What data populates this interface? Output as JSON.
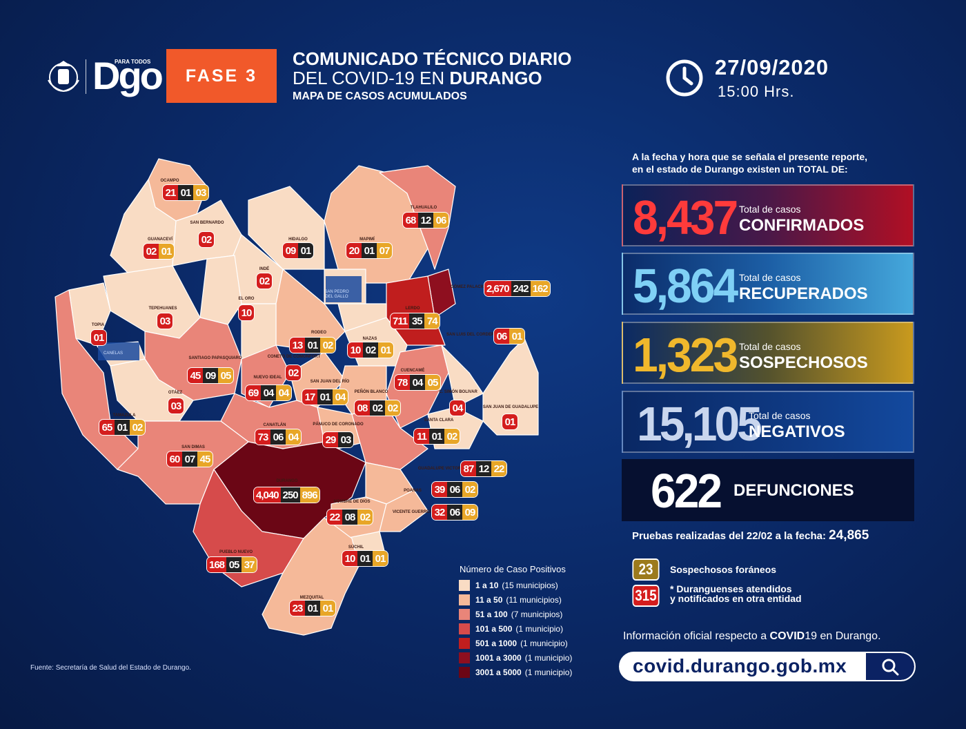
{
  "header": {
    "logo_text": "Dgo",
    "logo_small": "PARA TODOS",
    "fase": "FASE 3",
    "title_line1": "COMUNICADO TÉCNICO DIARIO",
    "title_line2_a": "DEL COVID-19 EN ",
    "title_line2_b": "DURANGO",
    "subtitle": "MAPA DE CASOS ACUMULADOS",
    "date": "27/09/2020",
    "time": "15:00 Hrs."
  },
  "summary": {
    "intro_1": "A la fecha y hora que se señala el presente reporte,",
    "intro_2": "en el estado de Durango existen un TOTAL DE:",
    "confirmados": {
      "value": "8,437",
      "label1": "Total de casos",
      "label2": "CONFIRMADOS"
    },
    "recuperados": {
      "value": "5,864",
      "label1": "Total de casos",
      "label2": "RECUPERADOS"
    },
    "sospechosos": {
      "value": "1,323",
      "label1": "Total de casos",
      "label2": "SOSPECHOSOS"
    },
    "negativos": {
      "value": "15,105",
      "label1": "Total de casos",
      "label2": "NEGATIVOS"
    },
    "defunciones": {
      "value": "622",
      "label": "DEFUNCIONES"
    },
    "pruebas_label": "Pruebas realizadas del 22/02 a la fecha:",
    "pruebas_value": "24,865",
    "foraneos_value": "23",
    "foraneos_label": "Sospechosos foráneos",
    "otra_value": "315",
    "otra_label1": "* Duranguenses atendidos",
    "otra_label2": "y notificados en otra entidad",
    "info_a": "Información oficial respecto a ",
    "info_b": "COVID",
    "info_c": "19 en Durango.",
    "url": "covid.durango.gob.mx"
  },
  "fuente": "Fuente: Secretaría de Salud del Estado de Durango.",
  "map_legend": {
    "title": "Número de Caso Positivos",
    "items": [
      {
        "range": "1 a 10",
        "count": "(15 municipios)",
        "color": "#f9dcc4"
      },
      {
        "range": "11 a 50",
        "count": "(11 municipios)",
        "color": "#f5b999"
      },
      {
        "range": "51 a 100",
        "count": "(7 municipios)",
        "color": "#e98579"
      },
      {
        "range": "101 a 500",
        "count": "(1 municipio)",
        "color": "#d64b4b"
      },
      {
        "range": "501 a 1000",
        "count": "(1 municipio)",
        "color": "#c01e1e"
      },
      {
        "range": "1001 a 3000",
        "count": "(1 municipio)",
        "color": "#8e0f1f"
      },
      {
        "range": "3001 a 5000",
        "count": "(1 municipio)",
        "color": "#6b0615"
      }
    ]
  },
  "municipalities": [
    {
      "name": "OCAMPO",
      "c": "21",
      "r": "01",
      "s": "03"
    },
    {
      "name": "SAN BERNARDO",
      "c": "02"
    },
    {
      "name": "GUANACEVÍ",
      "c": "02",
      "s": "01"
    },
    {
      "name": "HIDALGO",
      "c": "09",
      "r": "01"
    },
    {
      "name": "MAPIMÍ",
      "c": "20",
      "r": "01",
      "s": "07"
    },
    {
      "name": "TLAHUALILO",
      "c": "68",
      "r": "12",
      "s": "06"
    },
    {
      "name": "INDÉ",
      "c": "02"
    },
    {
      "name": "GÓMEZ PALACIO",
      "c": "2,670",
      "r": "242",
      "s": "162"
    },
    {
      "name": "EL ORO",
      "c": "10"
    },
    {
      "name": "TEPEHUANES",
      "c": "03"
    },
    {
      "name": "LERDO",
      "c": "711",
      "r": "35",
      "s": "74"
    },
    {
      "name": "TOPIA",
      "c": "01"
    },
    {
      "name": "SAN LUIS DEL CORDERO",
      "c": "06",
      "s": "01"
    },
    {
      "name": "RODEO",
      "c": "13",
      "r": "01",
      "s": "02"
    },
    {
      "name": "NAZAS",
      "c": "10",
      "r": "02",
      "s": "01"
    },
    {
      "name": "SANTIAGO PAPASQUIARO",
      "c": "45",
      "r": "09",
      "s": "05"
    },
    {
      "name": "CONETO DE COMONFORT",
      "c": "02"
    },
    {
      "name": "CUENCAMÉ",
      "c": "78",
      "r": "04",
      "s": "05"
    },
    {
      "name": "NUEVO IDEAL",
      "c": "69",
      "r": "04",
      "s": "04"
    },
    {
      "name": "SAN JUAN DEL RÍO",
      "c": "17",
      "r": "01",
      "s": "04"
    },
    {
      "name": "OTÁEZ",
      "c": "03"
    },
    {
      "name": "PEÑÓN BLANCO",
      "c": "08",
      "r": "02",
      "s": "02"
    },
    {
      "name": "C. SIMÓN BOLIVAR",
      "c": "04"
    },
    {
      "name": "SAN JUAN DE GUADALUPE",
      "c": "01"
    },
    {
      "name": "TAMAZULA",
      "c": "65",
      "r": "01",
      "s": "02"
    },
    {
      "name": "SANTA CLARA",
      "c": "11",
      "r": "01",
      "s": "02"
    },
    {
      "name": "CANATLÁN",
      "c": "73",
      "r": "06",
      "s": "04"
    },
    {
      "name": "PÁNUCO DE CORONADO",
      "c": "29",
      "r": "03"
    },
    {
      "name": "SAN DIMAS",
      "c": "60",
      "r": "07",
      "s": "45"
    },
    {
      "name": "GUADALUPE VICTORIA",
      "c": "87",
      "r": "12",
      "s": "22"
    },
    {
      "name": "DURANGO",
      "c": "4,040",
      "r": "250",
      "s": "896"
    },
    {
      "name": "POANAS",
      "c": "39",
      "r": "06",
      "s": "02"
    },
    {
      "name": "NOMBRE DE DIOS",
      "c": "22",
      "r": "08",
      "s": "02"
    },
    {
      "name": "VICENTE GUERRERO",
      "c": "32",
      "r": "06",
      "s": "09"
    },
    {
      "name": "SÚCHIL",
      "c": "10",
      "r": "01",
      "s": "01"
    },
    {
      "name": "PUEBLO NUEVO",
      "c": "168",
      "r": "05",
      "s": "37"
    },
    {
      "name": "MEZQUITAL",
      "c": "23",
      "r": "01",
      "s": "01"
    }
  ],
  "map_tags": {
    "canelas": "CANELAS",
    "san_pedro": "SAN PEDRO DEL GALLO"
  },
  "colors": {
    "confirmados": "#ff3b3b",
    "recuperados": "#6cc6f0",
    "sospechosos": "#f0b82c",
    "negativos": "#c9d6ee"
  }
}
